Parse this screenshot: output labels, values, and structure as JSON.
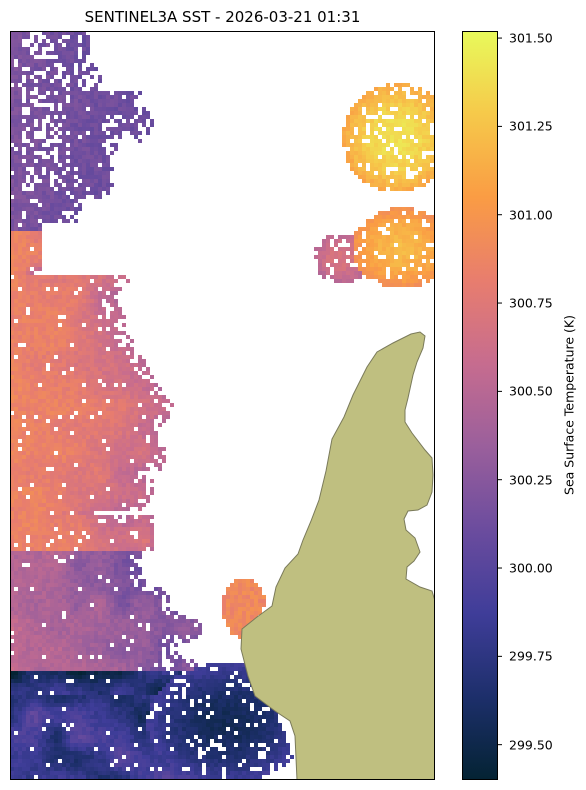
{
  "title": "SENTINEL3A SST - 2026-03-21 01:31",
  "colorbar": {
    "label": "Sea Surface Temperature (K)",
    "colormap": "thermal",
    "min": 299.4,
    "max": 301.52,
    "ticks": [
      "299.50",
      "299.75",
      "300.00",
      "300.25",
      "300.50",
      "300.75",
      "301.00",
      "301.25",
      "301.50"
    ],
    "colors": [
      "#042333",
      "#1d2f6b",
      "#3f3d99",
      "#6b4c9e",
      "#9a5f9c",
      "#c66c8f",
      "#e87d6e",
      "#fa9c44",
      "#f6c94a",
      "#e8fa5b"
    ]
  },
  "map": {
    "land_color": "#bfbf80",
    "land_edge_color": "#7a7a5a",
    "background_color": "#ffffff"
  }
}
